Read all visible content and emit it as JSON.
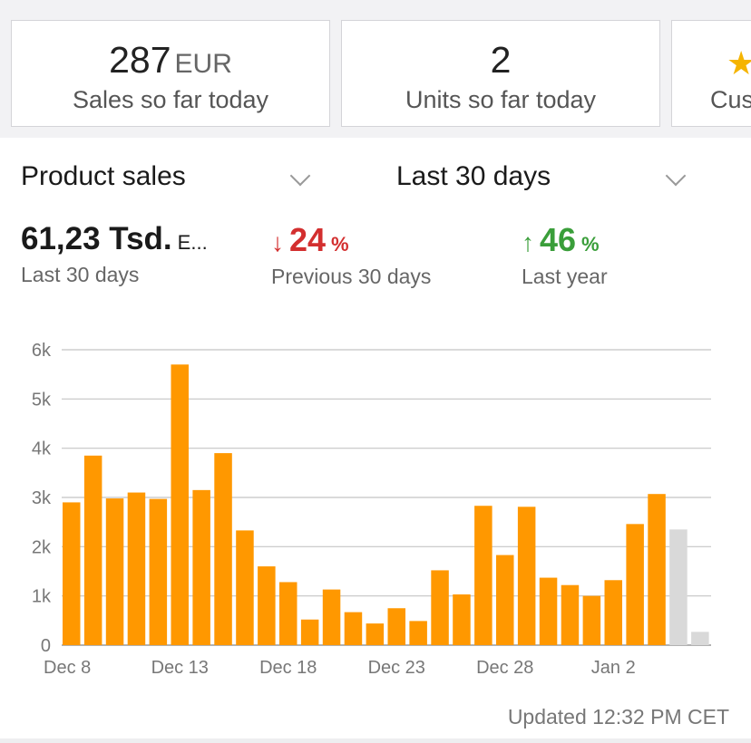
{
  "kpis": {
    "sales": {
      "value": "287",
      "unit": "EUR",
      "label": "Sales so far today"
    },
    "units": {
      "value": "2",
      "label": "Units so far today"
    },
    "customers": {
      "icon": "star-icon",
      "label": "Cus"
    }
  },
  "filters": {
    "metric_select": "Product sales",
    "period_select": "Last 30 days"
  },
  "metrics": {
    "total": {
      "value": "61,23 Tsd.",
      "unit": "E...",
      "label": "Last 30 days"
    },
    "previous": {
      "value": "24",
      "direction": "down",
      "unit": "%",
      "label": "Previous 30 days",
      "color": "#d32f2f"
    },
    "last_year": {
      "value": "46",
      "direction": "up",
      "unit": "%",
      "label": "Last year",
      "color": "#3a9e3a"
    }
  },
  "chart_data": {
    "type": "bar",
    "colors": {
      "complete": "#ff9800",
      "partial": "#d9d9d9"
    },
    "ylim": [
      0,
      6000
    ],
    "yticks": [
      0,
      1000,
      2000,
      3000,
      4000,
      5000,
      6000
    ],
    "ytick_labels": [
      "0",
      "1k",
      "2k",
      "3k",
      "4k",
      "5k",
      "6k"
    ],
    "xtick_labels": [
      {
        "label": "Dec 8",
        "index": 0
      },
      {
        "label": "Dec 13",
        "index": 5
      },
      {
        "label": "Dec 18",
        "index": 10
      },
      {
        "label": "Dec 23",
        "index": 15
      },
      {
        "label": "Dec 28",
        "index": 20
      },
      {
        "label": "Jan 2",
        "index": 25
      }
    ],
    "values": [
      2900,
      3850,
      2980,
      3100,
      2970,
      5700,
      3150,
      3900,
      2330,
      1600,
      1280,
      520,
      1130,
      670,
      440,
      750,
      490,
      1520,
      1030,
      2830,
      1830,
      2810,
      1370,
      1220,
      1000,
      1320,
      2460,
      3070,
      2350,
      270
    ],
    "partial_from_index": 28
  },
  "footer": {
    "updated": "Updated 12:32 PM CET"
  }
}
